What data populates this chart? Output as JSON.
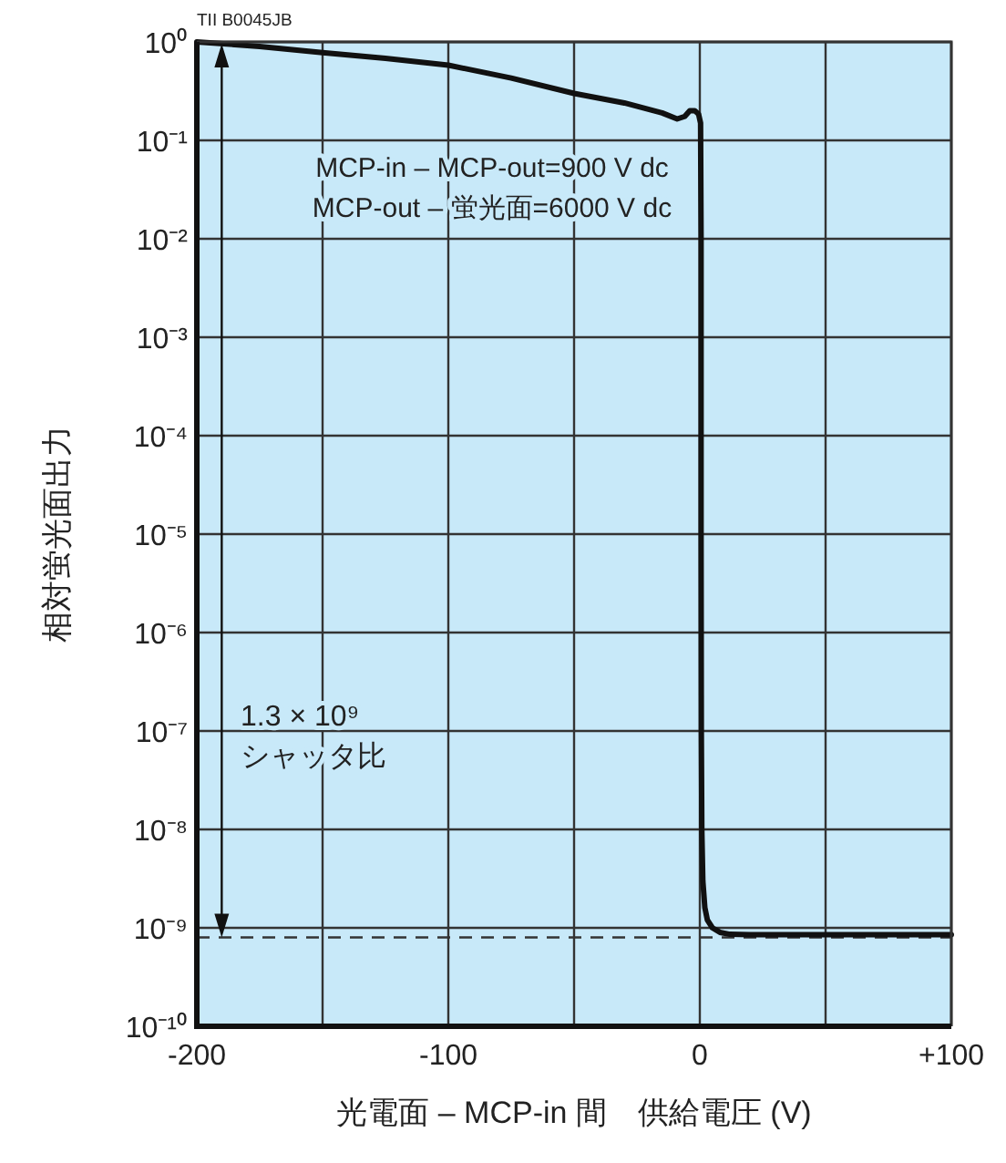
{
  "chart_data": {
    "type": "line",
    "xlabel": "光電面 – MCP-in 間　供給電圧 (V)",
    "ylabel": "相対蛍光面出力",
    "log": "y",
    "grid": true,
    "line_style": "solid",
    "xlim": [
      -200,
      100
    ],
    "xticks": [
      -200,
      {
        "value": -150,
        "label": null
      },
      -100,
      {
        "value": -50,
        "label": null
      },
      0,
      {
        "value": 50,
        "label": null
      },
      {
        "value": 100,
        "label": "+100"
      }
    ],
    "ylim": [
      1e-10,
      1
    ],
    "yticks": [
      {
        "value": 1,
        "label": "10⁰"
      },
      {
        "value": 0.1,
        "label": "10⁻¹"
      },
      {
        "value": 0.01,
        "label": "10⁻²"
      },
      {
        "value": 0.001,
        "label": "10⁻³"
      },
      {
        "value": 0.0001,
        "label": "10⁻⁴"
      },
      {
        "value": 1e-05,
        "label": "10⁻⁵"
      },
      {
        "value": 1e-06,
        "label": "10⁻⁶"
      },
      {
        "value": 1e-07,
        "label": "10⁻⁷"
      },
      {
        "value": 1e-08,
        "label": "10⁻⁸"
      },
      {
        "value": 1e-09,
        "label": "10⁻⁹"
      },
      {
        "value": 1e-10,
        "label": "10⁻¹⁰"
      }
    ],
    "series": [
      {
        "color": "#111111",
        "x": [
          -200,
          -175,
          -150,
          -125,
          -100,
          -75,
          -50,
          -30,
          -15,
          -9,
          -6,
          -4,
          -2,
          -0.5,
          0.3,
          0.5,
          0.5,
          0.6,
          0.8,
          1.2,
          2,
          3,
          5,
          8,
          12,
          20,
          50,
          100
        ],
        "values": [
          1,
          0.9,
          0.78,
          0.68,
          0.58,
          0.43,
          0.3,
          0.24,
          0.19,
          0.165,
          0.175,
          0.2,
          0.2,
          0.185,
          0.15,
          0.01,
          1e-05,
          1e-07,
          1e-08,
          3e-09,
          1.6e-09,
          1.2e-09,
          1e-09,
          9e-10,
          8.6e-10,
          8.5e-10,
          8.5e-10,
          8.5e-10
        ]
      }
    ],
    "ref_lines": [
      {
        "axis": "y",
        "value": 8e-10,
        "line_style": "dashed",
        "color": "#333333"
      }
    ],
    "annotations": [
      "TII B0045JB",
      "MCP-in – MCP-out=900 V dc\nMCP-out – 蛍光面=6000 V dc",
      "1.3 × 10⁹\nシャッタ比"
    ]
  }
}
